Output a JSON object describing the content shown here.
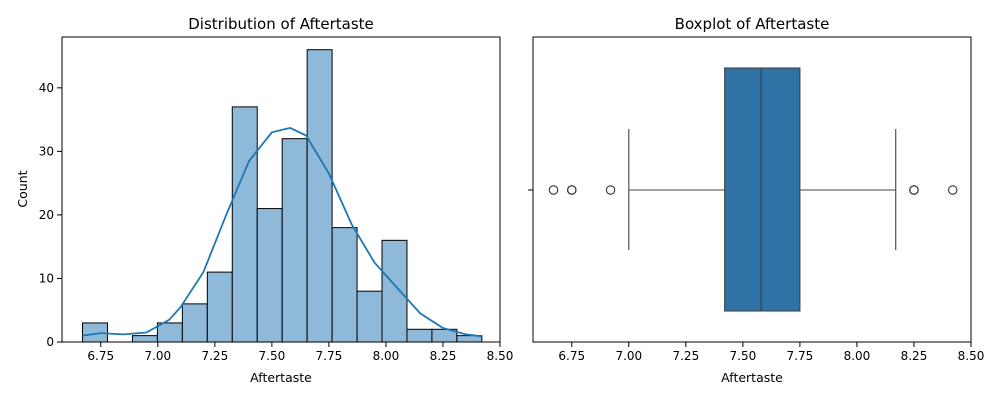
{
  "chart_data": [
    {
      "type": "bar",
      "title": "Distribution of Aftertaste",
      "xlabel": "Aftertaste",
      "ylabel": "Count",
      "xlim": [
        6.58,
        8.5
      ],
      "ylim": [
        0,
        48
      ],
      "xticks": [
        "6.75",
        "7.00",
        "7.25",
        "7.50",
        "7.75",
        "8.00",
        "8.25",
        "8.50"
      ],
      "yticks": [
        "0",
        "10",
        "20",
        "30",
        "40"
      ],
      "bin_start": 6.67,
      "bin_width": 0.1094,
      "values": [
        3,
        0,
        1,
        3,
        6,
        11,
        37,
        21,
        32,
        46,
        18,
        8,
        16,
        2,
        2,
        1
      ],
      "bar_color": "#8fb9d9",
      "kde": {
        "color": "#1f77b4",
        "x": [
          6.67,
          6.75,
          6.85,
          6.95,
          7.05,
          7.1,
          7.2,
          7.3,
          7.4,
          7.5,
          7.58,
          7.65,
          7.75,
          7.85,
          7.95,
          8.05,
          8.15,
          8.25,
          8.35,
          8.42
        ],
        "y": [
          1.0,
          1.4,
          1.2,
          1.5,
          3.5,
          5.5,
          11.0,
          20.0,
          28.5,
          33.0,
          33.7,
          32.5,
          26.5,
          18.5,
          12.5,
          8.5,
          4.5,
          2.2,
          1.2,
          0.9
        ]
      },
      "grid": false
    },
    {
      "type": "boxplot",
      "title": "Boxplot of Aftertaste",
      "xlabel": "Aftertaste",
      "xlim": [
        6.58,
        8.5
      ],
      "xticks": [
        "6.75",
        "7.00",
        "7.25",
        "7.50",
        "7.75",
        "8.00",
        "8.25",
        "8.50"
      ],
      "whisker_low": 7.0,
      "q1": 7.42,
      "median": 7.58,
      "q3": 7.75,
      "whisker_high": 8.17,
      "outliers": [
        6.67,
        6.75,
        6.75,
        6.92,
        8.25,
        8.25,
        8.42
      ],
      "box_color": "#2e72a6",
      "grid": false
    }
  ]
}
